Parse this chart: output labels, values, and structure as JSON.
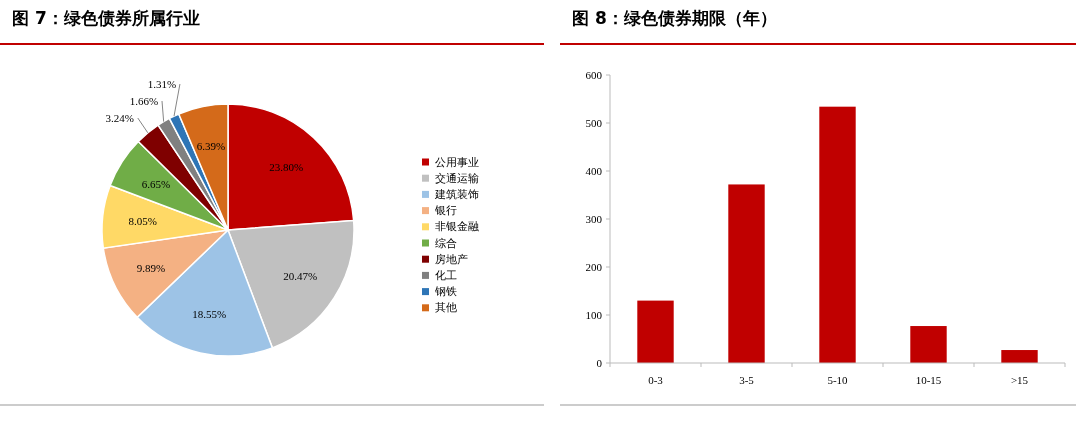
{
  "chart_data": [
    {
      "type": "pie",
      "title": "图 7：绿色债券所属行业",
      "categories": [
        "公用事业",
        "交通运输",
        "建筑装饰",
        "银行",
        "非银金融",
        "综合",
        "房地产",
        "化工",
        "钢铁",
        "其他"
      ],
      "values": [
        23.8,
        20.47,
        18.55,
        9.89,
        8.05,
        6.65,
        3.24,
        1.66,
        1.31,
        6.39
      ],
      "colors": [
        "#c00000",
        "#c0c0c0",
        "#9dc3e6",
        "#f4b183",
        "#ffd966",
        "#70ad47",
        "#7f0000",
        "#808080",
        "#2e75b6",
        "#d46a1a"
      ],
      "value_labels": [
        "23.80%",
        "20.47%",
        "18.55%",
        "9.89%",
        "8.05%",
        "6.65%",
        "3.24%",
        "1.66%",
        "1.31%",
        "6.39%"
      ],
      "legend": "right"
    },
    {
      "type": "bar",
      "title": "图 8：绿色债券期限（年）",
      "categories": [
        "0-3",
        "3-5",
        "5-10",
        "10-15",
        ">15"
      ],
      "values": [
        130,
        372,
        534,
        77,
        27
      ],
      "color": "#c00000",
      "ylim": [
        0,
        600
      ],
      "yticks": [
        0,
        100,
        200,
        300,
        400,
        500,
        600
      ],
      "grid": false
    }
  ]
}
